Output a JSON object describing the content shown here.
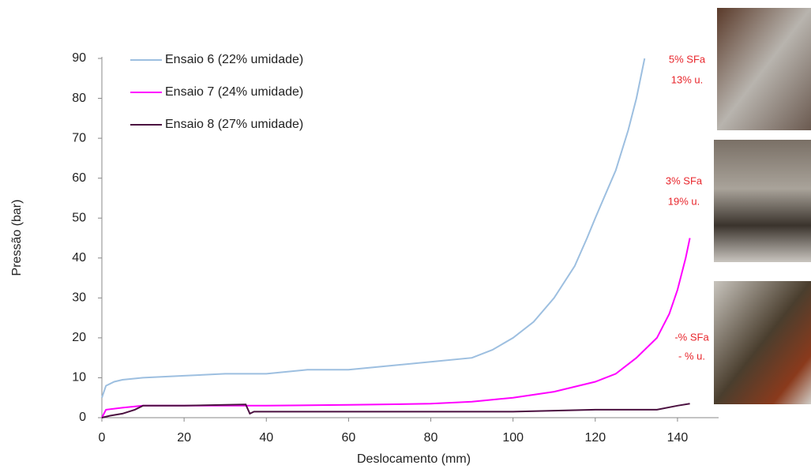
{
  "chart_data": {
    "type": "line",
    "x_label": "Deslocamento (mm)",
    "y_label": "Pressão (bar)",
    "xlim": [
      0,
      150
    ],
    "xticks": [
      0,
      20,
      40,
      60,
      80,
      100,
      120,
      140
    ],
    "ylim": [
      0,
      90
    ],
    "yticks": [
      0,
      10,
      20,
      30,
      40,
      50,
      60,
      70,
      80,
      90
    ],
    "legend": "upper left",
    "series": [
      {
        "name": "Ensaio 6 (22% umidade)",
        "color": "#9dbfe0",
        "x": [
          0,
          1,
          3,
          5,
          10,
          20,
          30,
          40,
          50,
          60,
          70,
          80,
          90,
          95,
          100,
          105,
          110,
          115,
          118,
          120,
          125,
          128,
          130,
          132
        ],
        "values": [
          5,
          8,
          9,
          9.5,
          10,
          10.5,
          11,
          11,
          12,
          12,
          13,
          14,
          15,
          17,
          20,
          24,
          30,
          38,
          45,
          50,
          62,
          72,
          80,
          90
        ]
      },
      {
        "name": "Ensaio 7 (24% umidade)",
        "color": "#ff00ff",
        "x": [
          0,
          1,
          5,
          10,
          20,
          40,
          60,
          80,
          90,
          100,
          110,
          120,
          125,
          130,
          135,
          138,
          140,
          142,
          143
        ],
        "values": [
          0,
          2,
          2.5,
          3,
          3,
          3,
          3.2,
          3.5,
          4,
          5,
          6.5,
          9,
          11,
          15,
          20,
          26,
          32,
          40,
          45
        ]
      },
      {
        "name": "Ensaio 8 (27% umidade)",
        "color": "#4b1040",
        "x": [
          0,
          2,
          5,
          8,
          10,
          20,
          30,
          35,
          36,
          37,
          40,
          60,
          80,
          100,
          120,
          135,
          140,
          143
        ],
        "values": [
          0,
          0.5,
          1,
          2,
          3,
          3,
          3.2,
          3.3,
          1,
          1.5,
          1.5,
          1.5,
          1.5,
          1.5,
          2,
          2,
          3,
          3.5
        ]
      }
    ],
    "annotations": [
      "5% SFa",
      "13% u.",
      "3% SFa",
      "19% u.",
      "-% SFa",
      "- % u."
    ]
  }
}
